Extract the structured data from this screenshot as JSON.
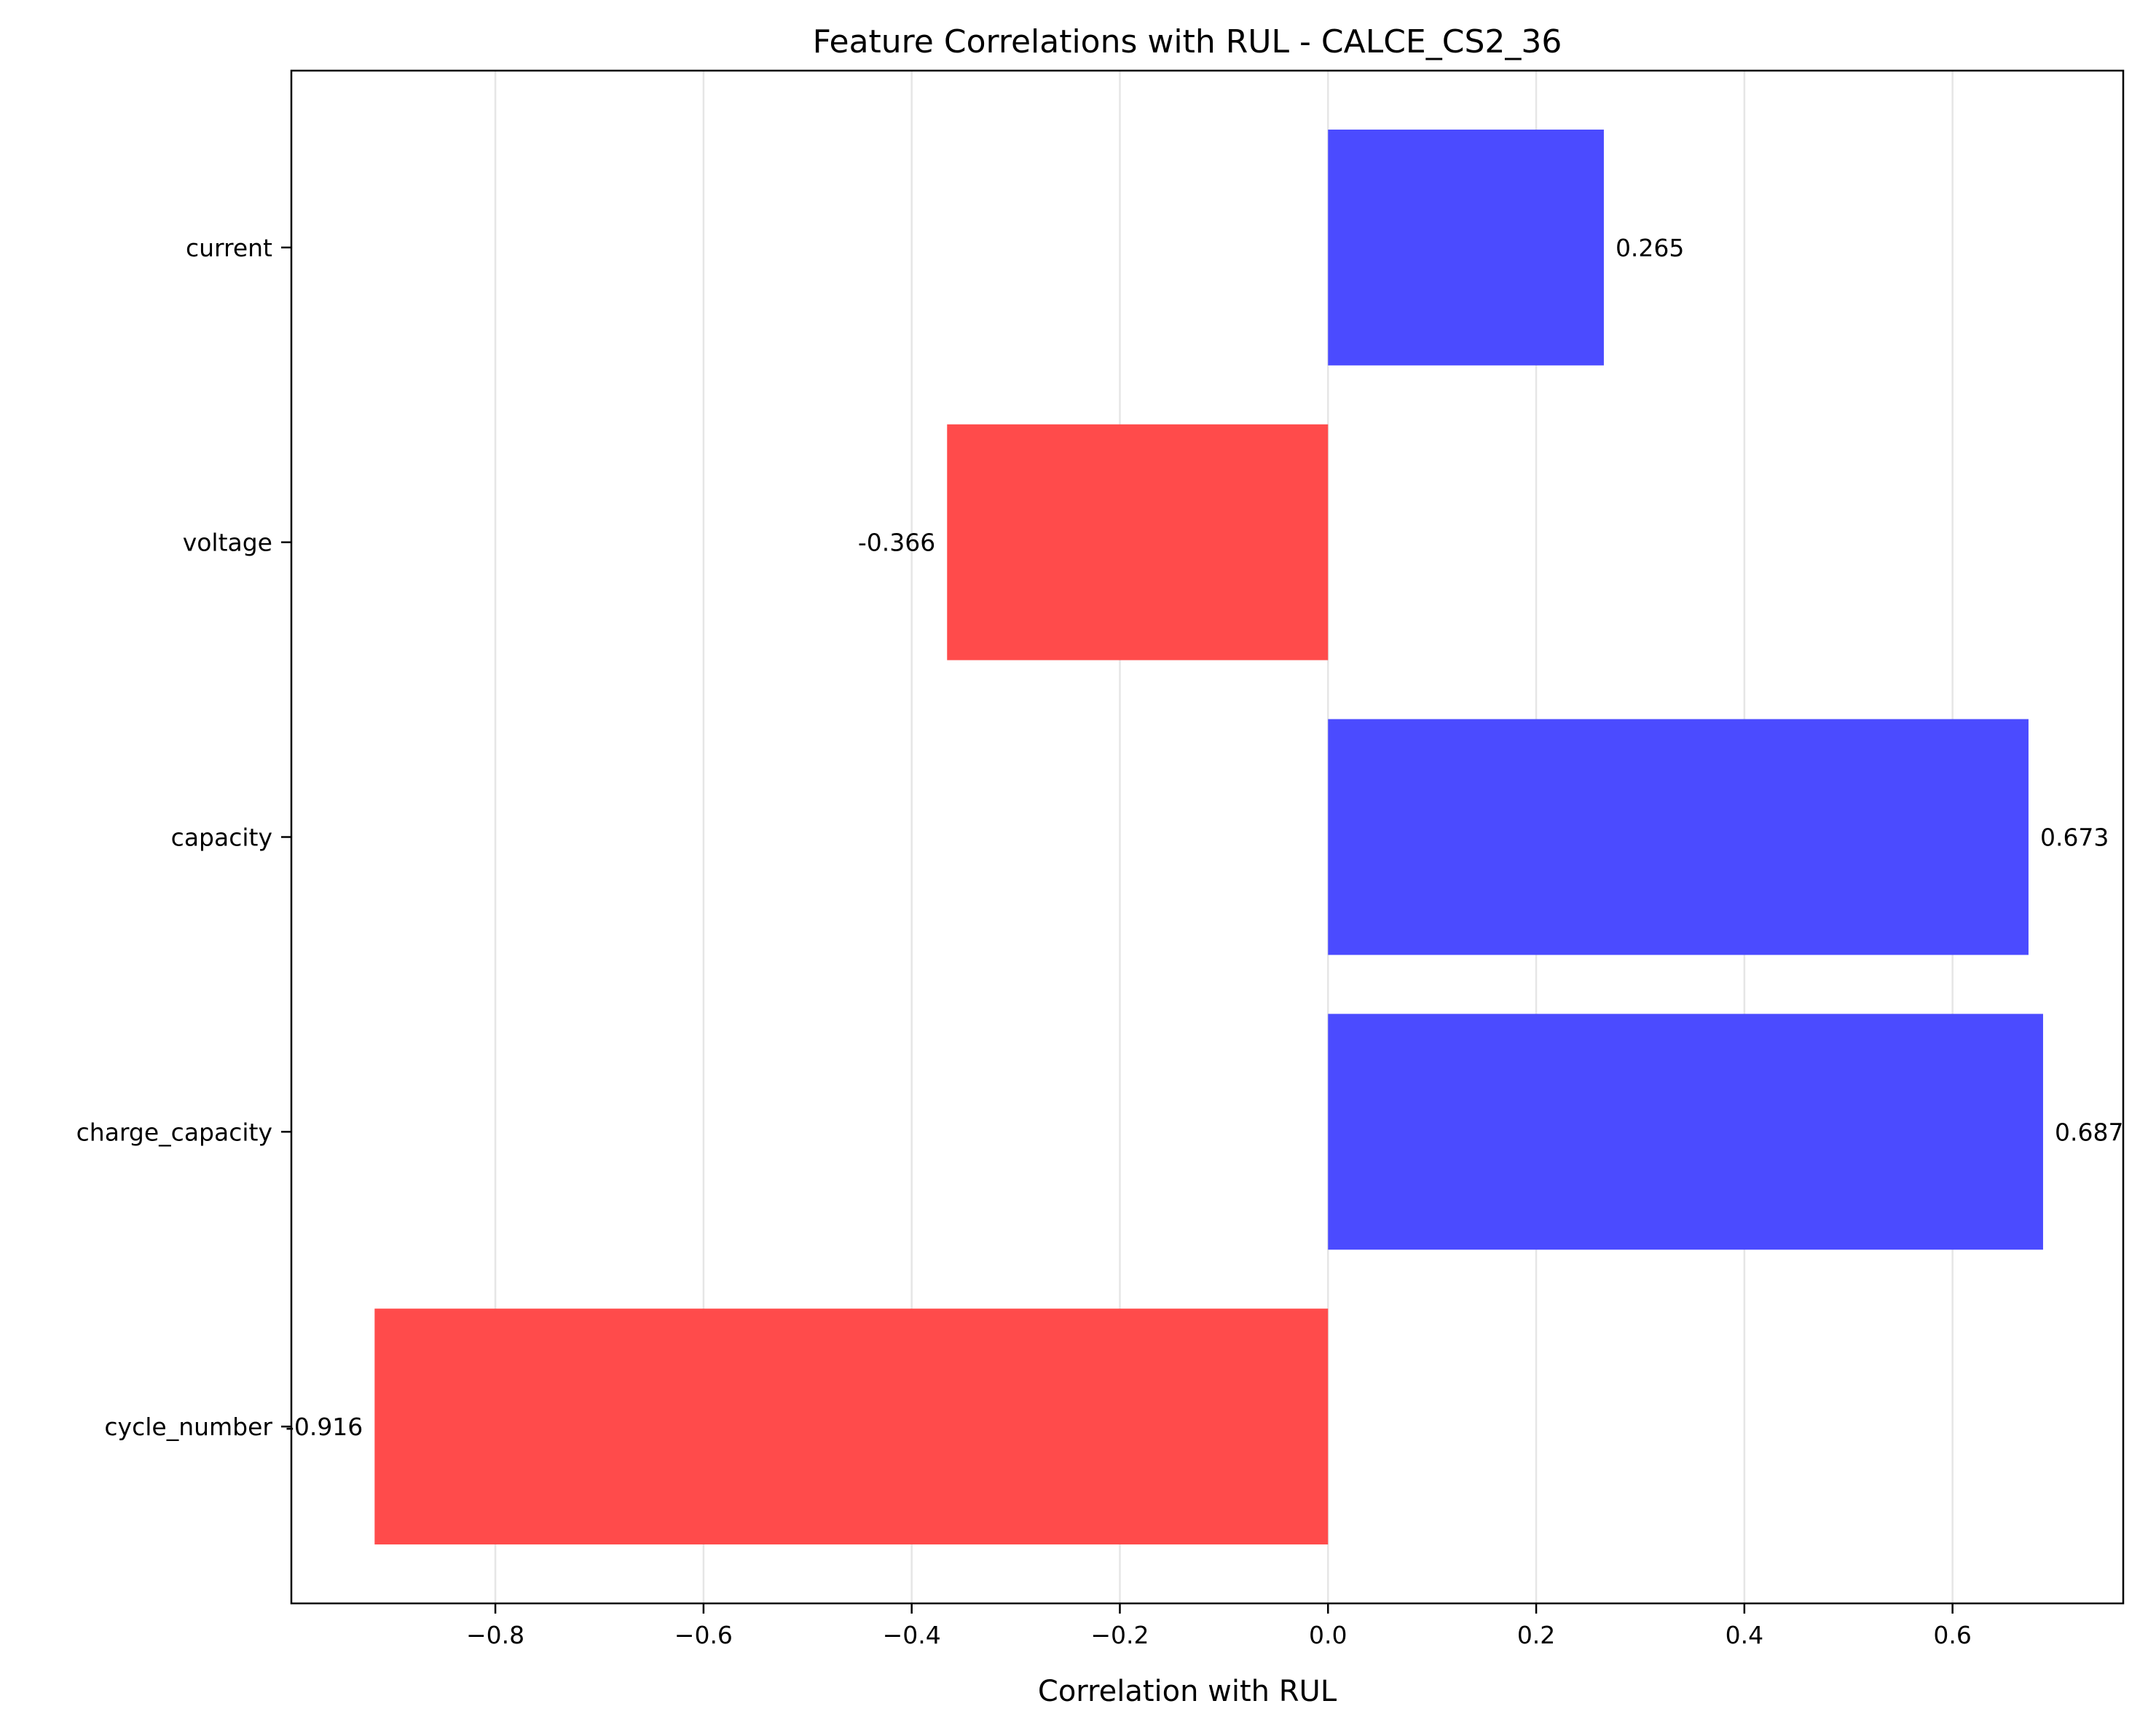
{
  "chart_data": {
    "type": "bar",
    "orientation": "horizontal",
    "title": "Feature Correlations with RUL - CALCE_CS2_36",
    "xlabel": "Correlation with RUL",
    "ylabel": "",
    "categories": [
      "cycle_number",
      "charge_capacity",
      "capacity",
      "voltage",
      "current"
    ],
    "values": [
      -0.916,
      0.687,
      0.673,
      -0.366,
      0.265
    ],
    "data_labels": [
      "-0.916",
      "0.687",
      "0.673",
      "-0.366",
      "0.265"
    ],
    "xlim": [
      -0.996,
      0.764
    ],
    "x_ticks": [
      -0.8,
      -0.6,
      -0.4,
      -0.2,
      0.0,
      0.2,
      0.4,
      0.6
    ],
    "x_tick_labels": [
      "−0.8",
      "−0.6",
      "−0.4",
      "−0.2",
      "0.0",
      "0.2",
      "0.4",
      "0.6"
    ],
    "grid": "vertical",
    "legend": "none",
    "colors": {
      "positive": "#4b4bff",
      "negative": "#ff4b4b",
      "grid": "#e6e6e6",
      "axis": "#000000"
    }
  }
}
